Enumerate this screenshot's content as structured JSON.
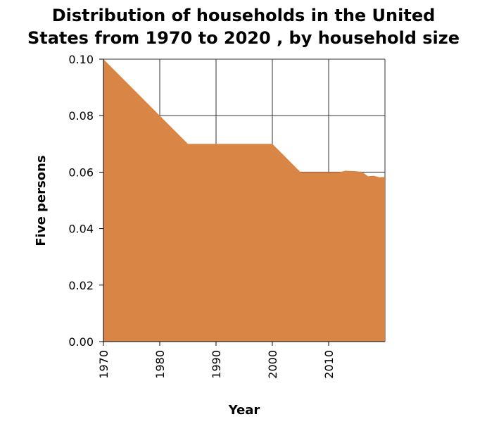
{
  "chart_data": {
    "type": "area",
    "title_lines": [
      "Distribution of households in the United",
      "States from 1970 to 2020 , by household size"
    ],
    "xlabel": "Year",
    "ylabel": "Five persons",
    "xlim": [
      1970,
      2020
    ],
    "ylim": [
      0,
      0.1
    ],
    "x_ticks": [
      {
        "value": 1970,
        "label": "1970"
      },
      {
        "value": 1980,
        "label": "1980"
      },
      {
        "value": 1990,
        "label": "1990"
      },
      {
        "value": 2000,
        "label": "2000"
      },
      {
        "value": 2010,
        "label": "2010"
      }
    ],
    "y_ticks": [
      {
        "value": 0.0,
        "label": "0.00"
      },
      {
        "value": 0.02,
        "label": "0.02"
      },
      {
        "value": 0.04,
        "label": "0.04"
      },
      {
        "value": 0.06,
        "label": "0.06"
      },
      {
        "value": 0.08,
        "label": "0.08"
      },
      {
        "value": 0.1,
        "label": "0.10"
      }
    ],
    "grid": true,
    "fill_color": "#d98545",
    "series": [
      {
        "x": [
          1970,
          1980,
          1985,
          1990,
          2000,
          2005,
          2010,
          2012,
          2013,
          2015,
          2016,
          2017,
          2018,
          2019,
          2020
        ],
        "values": [
          0.1,
          0.08,
          0.07,
          0.07,
          0.07,
          0.06,
          0.06,
          0.06,
          0.0605,
          0.0603,
          0.06,
          0.0585,
          0.0587,
          0.0582,
          0.0583
        ]
      }
    ]
  }
}
